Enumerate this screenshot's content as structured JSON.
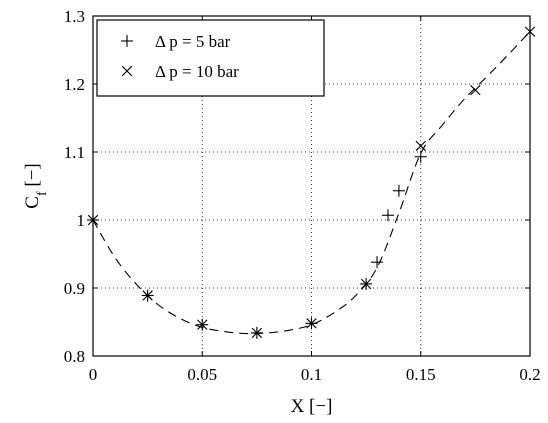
{
  "chart_data": {
    "type": "scatter",
    "xlabel": "X [−]",
    "ylabel": {
      "main": "C",
      "sub": "f",
      "rest": " [−]"
    },
    "xlim": [
      0,
      0.2
    ],
    "ylim": [
      0.8,
      1.3
    ],
    "x_ticks": [
      0,
      0.05,
      0.1,
      0.15,
      0.2
    ],
    "x_tick_labels": [
      "0",
      "0.05",
      "0.1",
      "0.15",
      "0.2"
    ],
    "y_ticks": [
      0.8,
      0.9,
      1.0,
      1.1,
      1.2,
      1.3
    ],
    "y_tick_labels": [
      "0.8",
      "0.9",
      "1",
      "1.1",
      "1.2",
      "1.3"
    ],
    "grid": true,
    "legend_position": "top-left",
    "series": [
      {
        "name": "Δ p = 5 bar",
        "marker": "plus",
        "x": [
          0,
          0.025,
          0.05,
          0.075,
          0.1,
          0.125,
          0.13,
          0.135,
          0.14,
          0.15
        ],
        "y": [
          1.0,
          0.889,
          0.846,
          0.834,
          0.848,
          0.906,
          0.938,
          1.007,
          1.043,
          1.093
        ]
      },
      {
        "name": "Δ p = 10 bar",
        "marker": "x",
        "x": [
          0,
          0.025,
          0.05,
          0.075,
          0.1,
          0.125,
          0.15,
          0.175,
          0.2
        ],
        "y": [
          1.0,
          0.889,
          0.846,
          0.834,
          0.848,
          0.906,
          1.109,
          1.191,
          1.277
        ]
      }
    ],
    "fit_curve": {
      "style": "dashed",
      "x": [
        0,
        0.01,
        0.02,
        0.03,
        0.04,
        0.05,
        0.06,
        0.07,
        0.08,
        0.09,
        0.1,
        0.11,
        0.12,
        0.13,
        0.14,
        0.15,
        0.16,
        0.17,
        0.18,
        0.19,
        0.2
      ],
      "y": [
        1.0,
        0.945,
        0.905,
        0.875,
        0.855,
        0.842,
        0.836,
        0.833,
        0.834,
        0.838,
        0.846,
        0.863,
        0.888,
        0.93,
        1.01,
        1.098,
        1.14,
        1.178,
        1.21,
        1.243,
        1.277
      ]
    }
  }
}
